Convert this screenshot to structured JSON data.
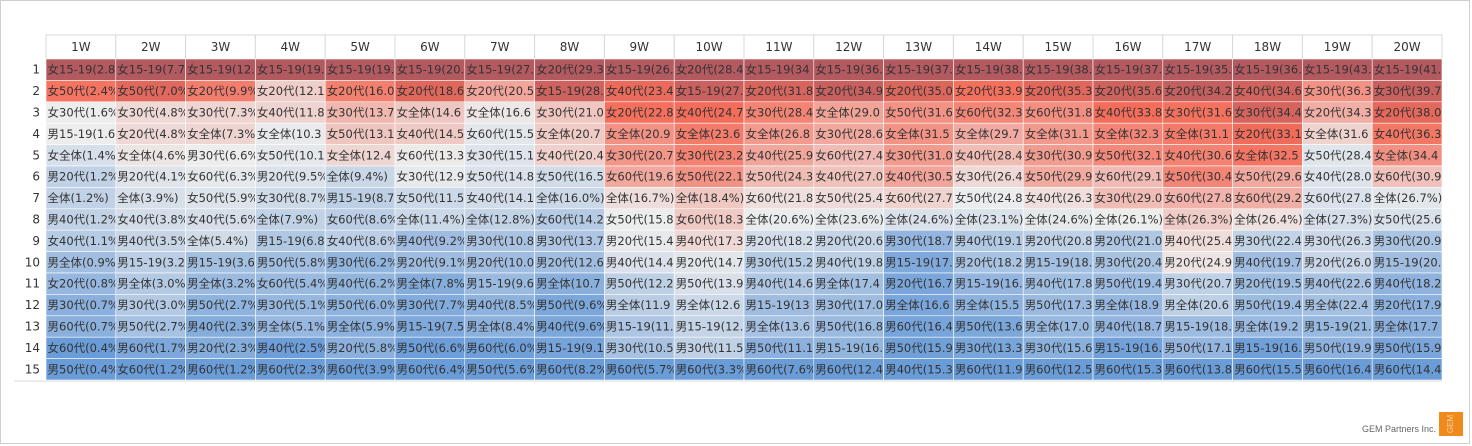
{
  "footer": {
    "credit": "GEM Partners Inc.",
    "logo_text": "GEM"
  },
  "chart_data": {
    "type": "heatmap",
    "columns": [
      "1W",
      "2W",
      "3W",
      "4W",
      "5W",
      "6W",
      "7W",
      "8W",
      "9W",
      "10W",
      "11W",
      "12W",
      "13W",
      "14W",
      "15W",
      "16W",
      "17W",
      "18W",
      "19W",
      "20W"
    ],
    "row_labels": [
      "1",
      "2",
      "3",
      "4",
      "5",
      "6",
      "7",
      "8",
      "9",
      "10",
      "11",
      "12",
      "13",
      "14",
      "15"
    ],
    "color_scale": {
      "low": "#6a9cd8",
      "mid": "#ededed",
      "high": "#f46d5a",
      "dark": "#b25a60"
    },
    "cells": [
      [
        "女15-19(2.8",
        "女15-19(7.7",
        "女15-19(12.",
        "女15-19(19.",
        "女15-19(19.",
        "女15-19(20.",
        "女15-19(27.",
        "女20代(29.3",
        "女15-19(26.",
        "女20代(28.4",
        "女15-19(34",
        "女15-19(36.",
        "女15-19(37.",
        "女15-19(38.",
        "女15-19(38.",
        "女15-19(37.",
        "女15-19(35.",
        "女15-19(36.",
        "女15-19(43.",
        "女15-19(41."
      ],
      [
        "女50代(2.4%",
        "女50代(7.0%",
        "女20代(9.9%",
        "女20代(12.1",
        "女20代(16.0",
        "女20代(18.6",
        "女20代(20.5",
        "女15-19(28.",
        "女40代(23.4",
        "女15-19(27.",
        "女20代(31.8",
        "女20代(34.9",
        "女20代(35.0",
        "女20代(33.9",
        "女20代(35.3",
        "女20代(35.6",
        "女20代(34.2",
        "女40代(34.6",
        "女30代(36.3",
        "女30代(39.7"
      ],
      [
        "女30代(1.6%",
        "女30代(4.8%",
        "女30代(7.3%",
        "女40代(11.8",
        "女30代(13.7",
        "女全体(14.6",
        "女全体(16.6",
        "女30代(21.0",
        "女20代(22.8",
        "女40代(24.7",
        "女30代(28.4",
        "女全体(29.0",
        "女50代(31.6",
        "女60代(32.3",
        "女60代(31.8",
        "女40代(33.8",
        "女30代(31.6",
        "女30代(34.4",
        "女20代(34.3",
        "女20代(38.0"
      ],
      [
        "男15-19(1.6",
        "女20代(4.8%",
        "女全体(7.3%",
        "女全体(10.3",
        "女50代(13.1",
        "女40代(14.5",
        "女60代(15.5",
        "女全体(20.7",
        "女全体(20.9",
        "女全体(23.6",
        "女全体(26.8",
        "女30代(28.6",
        "女全体(31.5",
        "女全体(29.7",
        "女全体(31.1",
        "女全体(32.3",
        "女全体(31.1",
        "女20代(33.1",
        "女全体(31.6",
        "女40代(36.3"
      ],
      [
        "女全体(1.4%",
        "女全体(4.6%",
        "男30代(6.6%",
        "女50代(10.1",
        "女全体(12.4",
        "女60代(13.3",
        "女30代(15.1",
        "女40代(20.4",
        "女30代(20.7",
        "女30代(23.2",
        "女40代(25.9",
        "女60代(27.4",
        "女30代(31.0",
        "女40代(28.4",
        "女30代(30.9",
        "女50代(32.1",
        "女40代(30.6",
        "女全体(32.5",
        "女50代(28.4",
        "女全体(34.4"
      ],
      [
        "男20代(1.2%",
        "男20代(4.1%",
        "女60代(6.3%",
        "男20代(9.5%",
        "全体(9.4%)",
        "女30代(12.9",
        "女50代(14.8",
        "女50代(16.5",
        "女60代(19.6",
        "女50代(22.1",
        "女50代(24.3",
        "女40代(27.0",
        "女40代(30.5",
        "女30代(26.4",
        "女50代(29.9",
        "女60代(29.1",
        "女50代(30.4",
        "女50代(29.6",
        "女40代(28.0",
        "女60代(30.9"
      ],
      [
        "全体(1.2%)",
        "全体(3.9%)",
        "女50代(5.9%",
        "女30代(8.7%",
        "男15-19(8.7",
        "女50代(11.5",
        "女40代(14.1",
        "全体(16.0%)",
        "全体(16.7%)",
        "全体(18.4%)",
        "女60代(21.8",
        "女50代(25.4",
        "女60代(27.7",
        "女50代(24.8",
        "女40代(26.3",
        "女30代(29.0",
        "女60代(27.8",
        "女60代(29.2",
        "女60代(27.8",
        "全体(26.7%)"
      ],
      [
        "男40代(1.2%",
        "女40代(3.8%",
        "女40代(5.6%",
        "全体(7.9%)",
        "女60代(8.6%",
        "全体(11.4%)",
        "全体(12.8%)",
        "女60代(14.2",
        "女50代(15.8",
        "女60代(18.3",
        "全体(20.6%)",
        "全体(23.6%)",
        "全体(24.6%)",
        "全体(23.1%)",
        "全体(24.6%)",
        "全体(26.1%)",
        "全体(26.3%)",
        "全体(26.4%)",
        "全体(27.3%)",
        "女50代(25.6"
      ],
      [
        "女40代(1.1%",
        "男40代(3.5%",
        "全体(5.4%)",
        "男15-19(6.8",
        "女40代(8.6%",
        "男40代(9.2%",
        "男30代(10.8",
        "男30代(13.7",
        "男20代(15.4",
        "男40代(17.3",
        "男20代(18.2",
        "男20代(20.6",
        "男30代(18.7",
        "男40代(19.1",
        "男20代(20.8",
        "男20代(21.0",
        "男40代(25.4",
        "男30代(22.4",
        "男30代(26.3",
        "男30代(20.9"
      ],
      [
        "男全体(0.9%",
        "男15-19(3.2",
        "男15-19(3.6",
        "男50代(5.8%",
        "男30代(6.2%",
        "男20代(9.1%",
        "男20代(10.0",
        "男20代(12.6",
        "男40代(14.4",
        "男20代(14.7",
        "男30代(15.2",
        "男40代(19.8",
        "男15-19(17.",
        "男20代(18.2",
        "男15-19(18.",
        "男30代(20.4",
        "男20代(24.9",
        "男40代(19.7",
        "男20代(26.0",
        "男15-19(20."
      ],
      [
        "女20代(0.8%",
        "男全体(3.0%",
        "男全体(3.2%",
        "女60代(5.4%",
        "男40代(6.2%",
        "男全体(7.8%",
        "男15-19(9.6",
        "男全体(10.7",
        "男50代(12.2",
        "男50代(13.9",
        "男40代(14.6",
        "男全体(17.4",
        "男20代(16.7",
        "男15-19(16.",
        "男40代(17.8",
        "男50代(19.4",
        "男30代(20.7",
        "男20代(19.5",
        "男40代(22.6",
        "男40代(18.2"
      ],
      [
        "男30代(0.7%",
        "男30代(3.0%",
        "男50代(2.7%",
        "男30代(5.1%",
        "男50代(6.0%",
        "男30代(7.7%",
        "男40代(8.5%",
        "男50代(9.6%",
        "男全体(11.9",
        "男全体(12.6",
        "男15-19(13",
        "男30代(17.0",
        "男全体(16.6",
        "男全体(15.5",
        "男50代(17.3",
        "男全体(18.9",
        "男全体(20.6",
        "男50代(19.4",
        "男全体(22.4",
        "男20代(17.9"
      ],
      [
        "男60代(0.7%",
        "男50代(2.7%",
        "男40代(2.3%",
        "男全体(5.1%",
        "男全体(5.9%",
        "男15-19(7.5",
        "男全体(8.4%",
        "男40代(9.6%",
        "男15-19(11.",
        "男15-19(12.",
        "男全体(13.6",
        "男50代(16.8",
        "男60代(16.4",
        "男50代(13.6",
        "男全体(17.0",
        "男40代(18.7",
        "男15-19(18.",
        "男全体(19.2",
        "男15-19(21.",
        "男全体(17.7"
      ],
      [
        "女60代(0.4%",
        "男60代(1.7%",
        "男20代(2.3%",
        "男40代(2.5%",
        "男20代(5.8%",
        "男50代(6.6%",
        "男60代(6.0%",
        "男15-19(9.1",
        "男30代(10.5",
        "男30代(11.5",
        "男50代(11.1",
        "男15-19(16.",
        "男50代(15.9",
        "男30代(13.3",
        "男30代(15.6",
        "男15-19(16.",
        "男50代(17.1",
        "男15-19(16.",
        "男50代(19.9",
        "男50代(15.9"
      ],
      [
        "男50代(0.4%",
        "女60代(1.2%",
        "男60代(1.2%",
        "男60代(2.3%",
        "男60代(3.9%",
        "男60代(6.4%",
        "男50代(5.6%",
        "男60代(8.2%",
        "男60代(5.7%",
        "男60代(3.3%",
        "男60代(7.6%",
        "男60代(12.4",
        "男40代(15.3",
        "男60代(11.9",
        "男60代(12.5",
        "男60代(15.3",
        "男60代(13.8",
        "男60代(15.5",
        "男60代(16.4",
        "男60代(14.4"
      ]
    ]
  }
}
